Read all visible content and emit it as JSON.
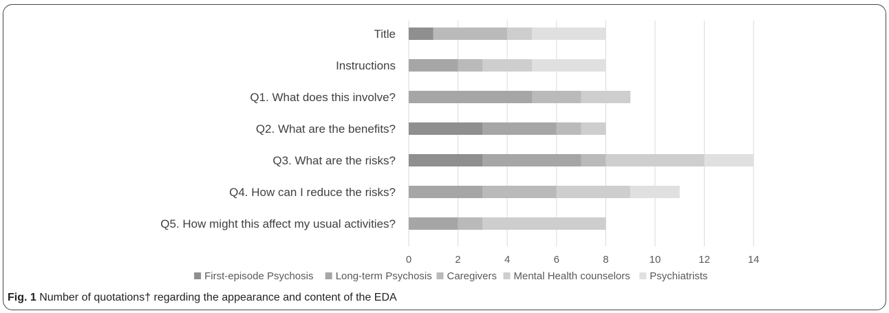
{
  "chart_data": {
    "type": "bar",
    "orientation": "horizontal",
    "stacked": true,
    "categories": [
      "Title",
      "Instructions",
      "Q1. What does this involve?",
      "Q2. What are the benefits?",
      "Q3. What are the risks?",
      "Q4. How can I reduce the risks?",
      "Q5. How might this affect my usual activities?"
    ],
    "series": [
      {
        "name": "First-episode Psychosis",
        "color": "#8f8f8f",
        "values": [
          1,
          0,
          0,
          3,
          3,
          0,
          0
        ]
      },
      {
        "name": "Long-term Psychosis",
        "color": "#a6a6a6",
        "values": [
          0,
          2,
          5,
          3,
          4,
          3,
          2
        ]
      },
      {
        "name": "Caregivers",
        "color": "#bababa",
        "values": [
          3,
          1,
          2,
          1,
          1,
          3,
          1
        ]
      },
      {
        "name": "Mental Health counselors",
        "color": "#cecece",
        "values": [
          1,
          2,
          2,
          1,
          4,
          3,
          5
        ]
      },
      {
        "name": "Psychiatrists",
        "color": "#e0e0e0",
        "values": [
          3,
          3,
          0,
          0,
          2,
          2,
          0
        ]
      }
    ],
    "xticks": [
      "0",
      "2",
      "4",
      "6",
      "8",
      "10",
      "12",
      "14"
    ],
    "xlim": [
      0,
      14
    ],
    "grid": true,
    "legend_position": "bottom"
  },
  "caption": {
    "label": "Fig. 1",
    "text": " Number of quotations† regarding the appearance and content of the EDA"
  }
}
